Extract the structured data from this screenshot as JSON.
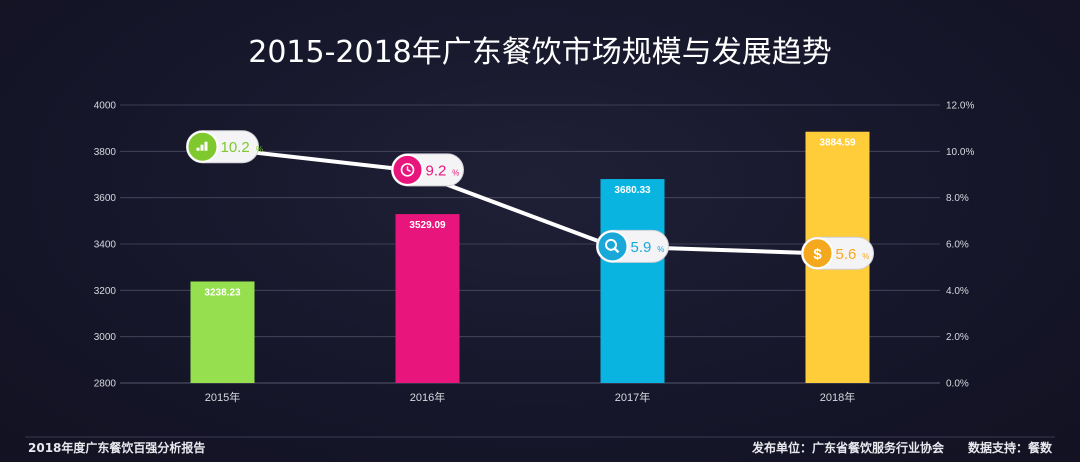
{
  "chart_data": {
    "type": "bar+line",
    "title": "2015-2018年广东餐饮市场规模与发展趋势",
    "categories": [
      "2015年",
      "2016年",
      "2017年",
      "2018年"
    ],
    "bars": {
      "values": [
        3238.23,
        3529.09,
        3680.33,
        3884.59
      ],
      "labels": [
        "3238.23",
        "3529.09",
        "3680.33",
        "3884.59"
      ],
      "colors": [
        "#96e04f",
        "#e8167c",
        "#0ab4e0",
        "#ffcc3a"
      ]
    },
    "line": {
      "values": [
        10.2,
        9.2,
        5.9,
        5.6
      ],
      "labels": [
        "10.2",
        "9.2",
        "5.9",
        "5.6"
      ],
      "unit": "%",
      "colors": [
        "#7fc82e",
        "#e8167c",
        "#19a8d8",
        "#f4a81e"
      ],
      "icons": [
        "signal-icon",
        "clock-icon",
        "magnifier-icon",
        "dollar-icon"
      ]
    },
    "y_left": {
      "min": 2800,
      "max": 4000,
      "ticks": [
        "2800",
        "3000",
        "3200",
        "3400",
        "3600",
        "3800",
        "4000"
      ]
    },
    "y_right": {
      "min": 0,
      "max": 12,
      "ticks": [
        "0.0%",
        "2.0%",
        "4.0%",
        "6.0%",
        "8.0%",
        "10.0%",
        "12.0%"
      ]
    },
    "grid": true
  },
  "footer": {
    "left": "2018年度广东餐饮百强分析报告",
    "right": "发布单位：广东省餐饮服务行业协会　　数据支持：餐数"
  },
  "colors": {
    "background": "#16162a",
    "grid": "#4a4a60",
    "line": "#ffffff"
  }
}
